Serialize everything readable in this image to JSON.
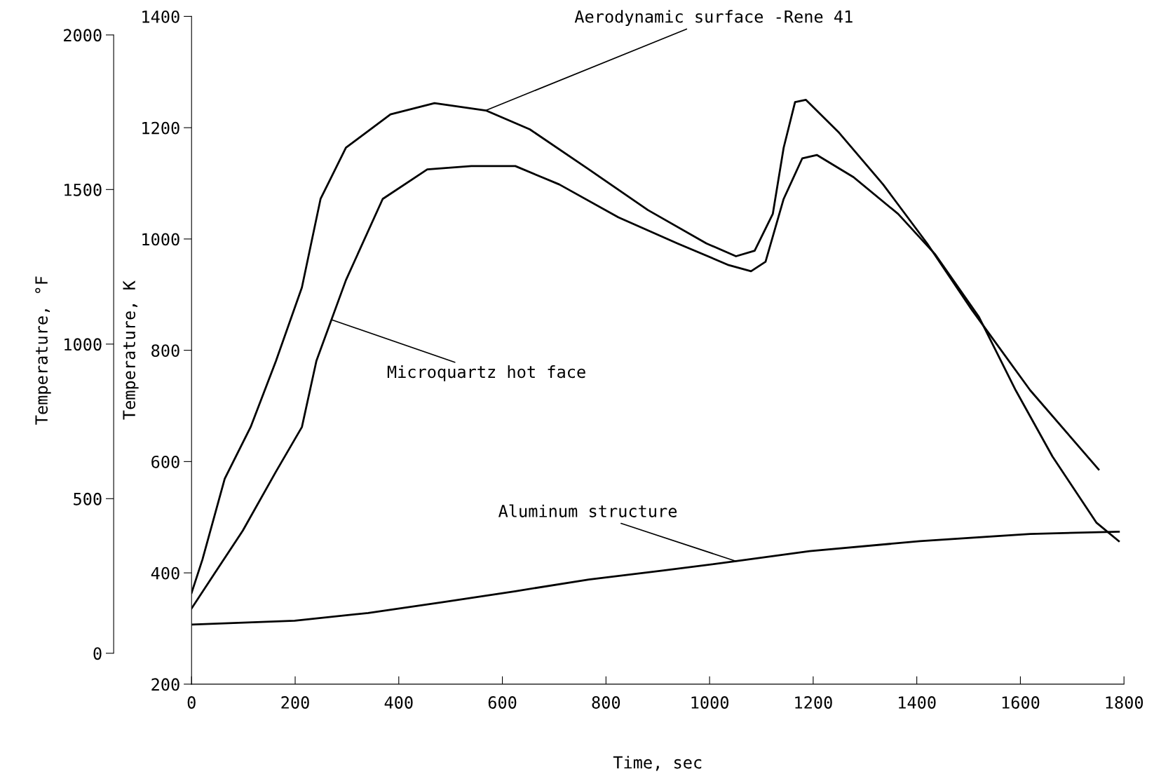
{
  "chart_data": {
    "type": "line",
    "xlabel": "Time, sec",
    "ylabel": "Temperature, K",
    "y2label": "Temperature, °F",
    "xlim": [
      0,
      1800
    ],
    "xticks": [
      0,
      200,
      400,
      600,
      800,
      1000,
      1200,
      1400,
      1600,
      1800
    ],
    "ylim": [
      200,
      1400
    ],
    "yticks": [
      200,
      400,
      600,
      800,
      1000,
      1200,
      1400
    ],
    "y2lim": [
      -100,
      2060
    ],
    "y2ticks": [
      0,
      500,
      1000,
      1500,
      2000
    ],
    "grid": false,
    "legend": false,
    "marker": "none",
    "line_style": "solid",
    "series": [
      {
        "color": "#000000",
        "x": [
          0,
          21,
          64,
          114,
          163,
          213,
          249,
          298,
          384,
          469,
          568,
          653,
          767,
          881,
          994,
          1051,
          1087,
          1122,
          1143,
          1165,
          1186,
          1250,
          1335,
          1420,
          1506,
          1619,
          1751
        ],
        "values": [
          364,
          424,
          569,
          662,
          781,
          913,
          1072,
          1164,
          1224,
          1244,
          1231,
          1197,
          1125,
          1052,
          992,
          969,
          979,
          1045,
          1164,
          1246,
          1250,
          1191,
          1098,
          992,
          873,
          728,
          586
        ]
      },
      {
        "color": "#000000",
        "x": [
          0,
          43,
          99,
          163,
          213,
          241,
          298,
          369,
          455,
          540,
          625,
          710,
          824,
          938,
          1037,
          1080,
          1108,
          1143,
          1179,
          1207,
          1278,
          1364,
          1435,
          1520,
          1591,
          1662,
          1747,
          1790
        ],
        "values": [
          336,
          397,
          476,
          582,
          662,
          781,
          926,
          1072,
          1125,
          1131,
          1131,
          1098,
          1039,
          992,
          953,
          942,
          959,
          1072,
          1145,
          1151,
          1111,
          1045,
          973,
          860,
          728,
          609,
          490,
          457
        ]
      },
      {
        "color": "#000000",
        "x": [
          0,
          199,
          341,
          483,
          625,
          767,
          909,
          1051,
          1193,
          1406,
          1619,
          1790
        ],
        "values": [
          307,
          314,
          328,
          347,
          367,
          388,
          404,
          421,
          439,
          457,
          470,
          474
        ]
      }
    ],
    "annotations": [
      {
        "text": "Aerodynamic surface -Rene 41",
        "x": 568,
        "y": 1231
      },
      {
        "text": "Microquartz hot face",
        "x": 270,
        "y": 855
      },
      {
        "text": "Aluminum structure",
        "x": 1051,
        "y": 421
      }
    ]
  }
}
